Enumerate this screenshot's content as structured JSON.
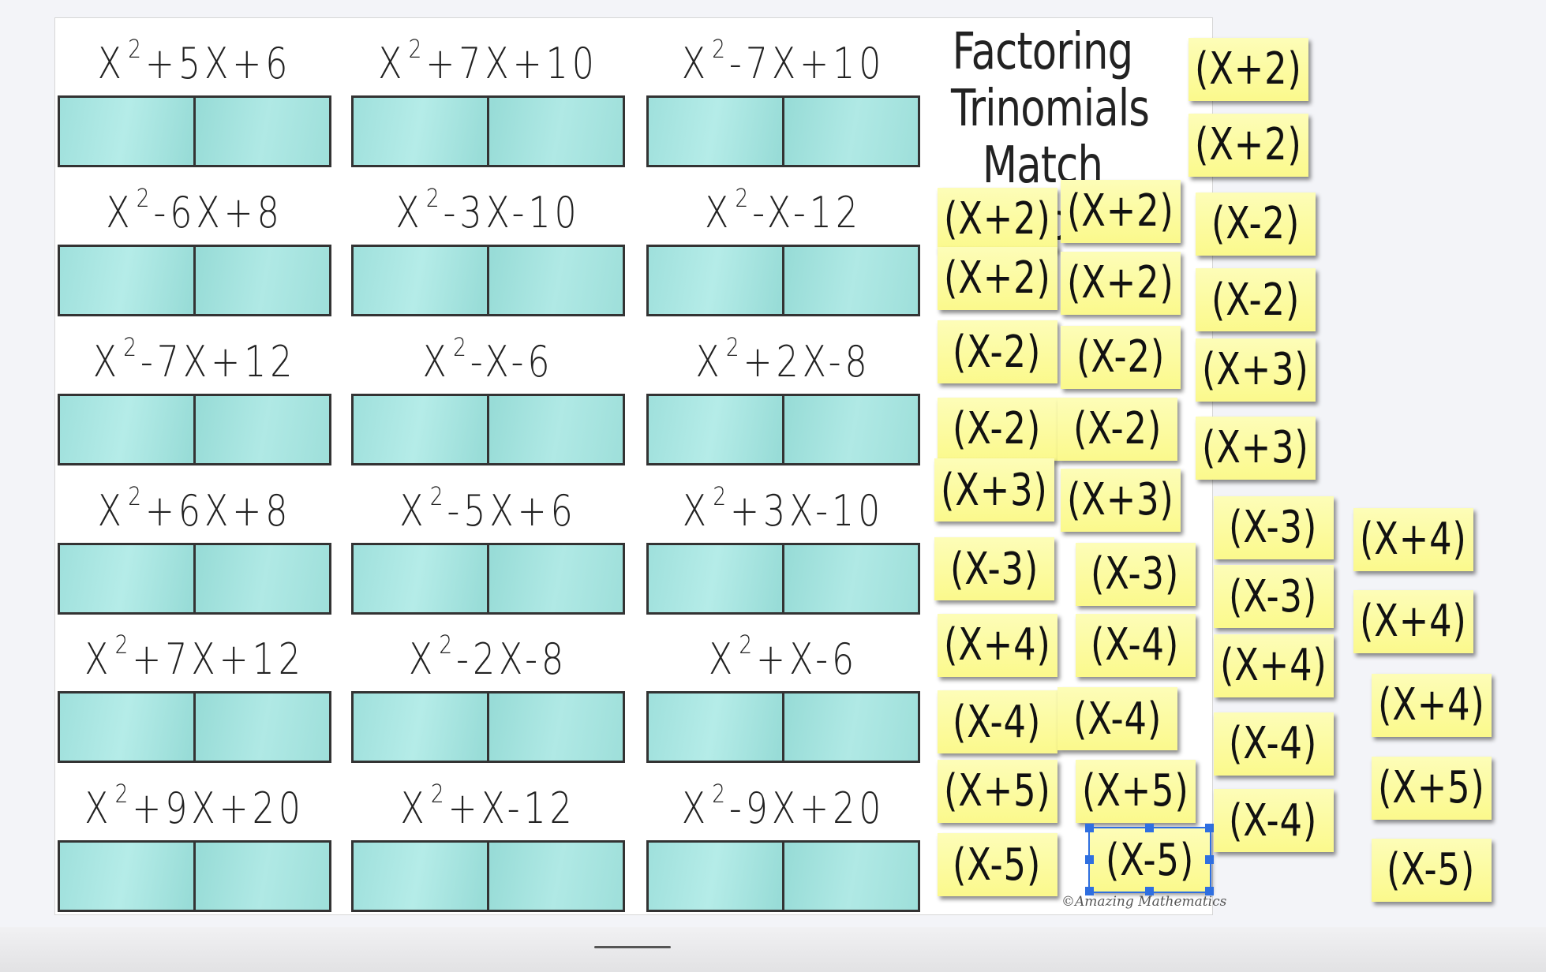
{
  "title": [
    "Factoring",
    "Trinomials",
    "Match Up"
  ],
  "copyright": "©Amazing Mathematics",
  "trinomials": [
    {
      "base": "X",
      "exp": "2",
      "rest": "+5X+6"
    },
    {
      "base": "X",
      "exp": "2",
      "rest": "+7X+10"
    },
    {
      "base": "X",
      "exp": "2",
      "rest": "-7X+10"
    },
    {
      "base": "X",
      "exp": "2",
      "rest": "-6X+8"
    },
    {
      "base": "X",
      "exp": "2",
      "rest": "-3X-10"
    },
    {
      "base": "X",
      "exp": "2",
      "rest": "-X-12"
    },
    {
      "base": "X",
      "exp": "2",
      "rest": "-7X+12"
    },
    {
      "base": "X",
      "exp": "2",
      "rest": "-X-6"
    },
    {
      "base": "X",
      "exp": "2",
      "rest": "+2X-8"
    },
    {
      "base": "X",
      "exp": "2",
      "rest": "+6X+8"
    },
    {
      "base": "X",
      "exp": "2",
      "rest": "-5X+6"
    },
    {
      "base": "X",
      "exp": "2",
      "rest": "+3X-10"
    },
    {
      "base": "X",
      "exp": "2",
      "rest": "+7X+12"
    },
    {
      "base": "X",
      "exp": "2",
      "rest": "-2X-8"
    },
    {
      "base": "X",
      "exp": "2",
      "rest": "+X-6"
    },
    {
      "base": "X",
      "exp": "2",
      "rest": "+9X+20"
    },
    {
      "base": "X",
      "exp": "2",
      "rest": "+X-12"
    },
    {
      "base": "X",
      "exp": "2",
      "rest": "-9X+20"
    }
  ],
  "notes": [
    "(X+2)",
    "(X+2)",
    "(X-2)",
    "(X-2)",
    "(X+3)",
    "(X-3)",
    "(X+4)",
    "(X-4)",
    "(X+5)",
    "(X-5)",
    "(X+2)",
    "(X+2)",
    "(X-2)",
    "(X-2)",
    "(X+3)",
    "(X-3)",
    "(X-4)",
    "(X-4)",
    "(X+5)",
    "(X-5)",
    "(X+2)",
    "(X+2)",
    "(X-2)",
    "(X-2)",
    "(X+3)",
    "(X+3)",
    "(X-3)",
    "(X-3)",
    "(X+4)",
    "(X-4)",
    "(X-4)",
    "(X+4)",
    "(X+4)",
    "(X+4)",
    "(X+5)",
    "(X-5)"
  ]
}
